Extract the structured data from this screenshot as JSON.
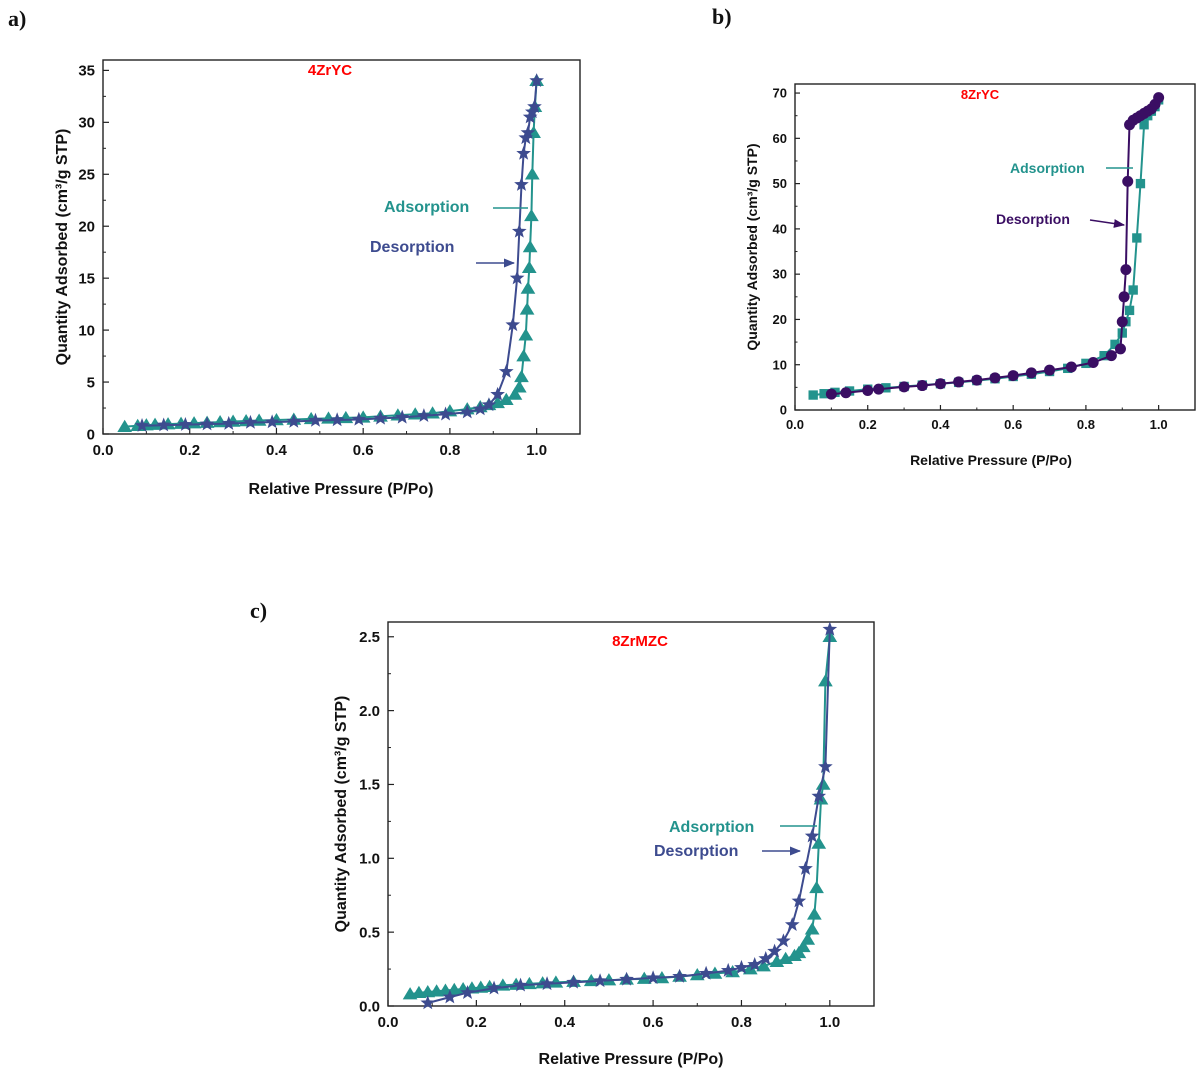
{
  "panels": {
    "a": "a)",
    "b": "b)",
    "c": "c)"
  },
  "colors": {
    "adsorption": "#23938d",
    "desorption_star": "#3d4b8f",
    "desorption_circle": "#3a0e63",
    "title": "#ff0000",
    "axis": "#222222"
  },
  "chart_data": [
    {
      "type": "line",
      "title": "4ZrYC",
      "xlabel": "Relative Pressure (P/Po)",
      "ylabel": "Quantity Adsorbed (cm³/g STP)",
      "xlim": [
        0.0,
        1.1
      ],
      "ylim": [
        0,
        36
      ],
      "xticks": [
        "0.0",
        "0.2",
        "0.4",
        "0.6",
        "0.8",
        "1.0"
      ],
      "xtick_values": [
        0,
        0.2,
        0.4,
        0.6,
        0.8,
        1.0
      ],
      "yticks": [
        "0",
        "5",
        "10",
        "15",
        "20",
        "25",
        "30",
        "35"
      ],
      "ytick_values": [
        0,
        5,
        10,
        15,
        20,
        25,
        30,
        35
      ],
      "annotations": [
        "Adsorption",
        "Desorption"
      ],
      "series": [
        {
          "name": "Adsorption",
          "marker": "triangle",
          "x": [
            0.05,
            0.08,
            0.1,
            0.12,
            0.15,
            0.18,
            0.21,
            0.24,
            0.27,
            0.3,
            0.33,
            0.36,
            0.4,
            0.44,
            0.48,
            0.52,
            0.56,
            0.6,
            0.64,
            0.68,
            0.72,
            0.76,
            0.8,
            0.84,
            0.87,
            0.89,
            0.91,
            0.93,
            0.95,
            0.96,
            0.965,
            0.97,
            0.975,
            0.978,
            0.98,
            0.983,
            0.985,
            0.988,
            0.99,
            0.993,
            0.996,
            1.0
          ],
          "y": [
            0.7,
            0.8,
            0.85,
            0.9,
            0.95,
            1.0,
            1.05,
            1.1,
            1.15,
            1.2,
            1.25,
            1.3,
            1.35,
            1.4,
            1.45,
            1.5,
            1.55,
            1.6,
            1.7,
            1.8,
            1.9,
            2.0,
            2.2,
            2.4,
            2.6,
            2.8,
            3.0,
            3.3,
            3.8,
            4.5,
            5.5,
            7.5,
            9.5,
            12.0,
            14.0,
            16.0,
            18.0,
            21.0,
            25.0,
            29.0,
            31.5,
            34.0
          ]
        },
        {
          "name": "Desorption",
          "marker": "star",
          "x": [
            1.0,
            0.995,
            0.99,
            0.985,
            0.98,
            0.975,
            0.97,
            0.965,
            0.96,
            0.955,
            0.945,
            0.93,
            0.91,
            0.89,
            0.87,
            0.84,
            0.79,
            0.74,
            0.69,
            0.64,
            0.59,
            0.54,
            0.49,
            0.44,
            0.39,
            0.34,
            0.29,
            0.24,
            0.19,
            0.14,
            0.09
          ],
          "y": [
            34.0,
            31.5,
            31.0,
            30.5,
            29.0,
            28.5,
            27.0,
            24.0,
            19.5,
            15.0,
            10.5,
            6.0,
            3.8,
            2.8,
            2.4,
            2.1,
            1.9,
            1.75,
            1.6,
            1.5,
            1.4,
            1.35,
            1.3,
            1.2,
            1.15,
            1.1,
            1.0,
            0.95,
            0.9,
            0.85,
            0.8
          ]
        }
      ]
    },
    {
      "type": "line",
      "title": "8ZrYC",
      "xlabel": "Relative Pressure (P/Po)",
      "ylabel": "Quantity Adsorbed (cm³/g STP)",
      "xlim": [
        0.0,
        1.1
      ],
      "ylim": [
        0,
        72
      ],
      "xticks": [
        "0.0",
        "0.2",
        "0.4",
        "0.6",
        "0.8",
        "1.0"
      ],
      "xtick_values": [
        0,
        0.2,
        0.4,
        0.6,
        0.8,
        1.0
      ],
      "yticks": [
        "0",
        "10",
        "20",
        "30",
        "40",
        "50",
        "60",
        "70"
      ],
      "ytick_values": [
        0,
        10,
        20,
        30,
        40,
        50,
        60,
        70
      ],
      "annotations": [
        "Adsorption",
        "Desorption"
      ],
      "series": [
        {
          "name": "Adsorption",
          "marker": "square",
          "x": [
            0.05,
            0.08,
            0.11,
            0.15,
            0.2,
            0.25,
            0.3,
            0.35,
            0.4,
            0.45,
            0.5,
            0.55,
            0.6,
            0.65,
            0.7,
            0.75,
            0.8,
            0.85,
            0.88,
            0.9,
            0.91,
            0.92,
            0.93,
            0.94,
            0.95,
            0.96,
            0.97,
            0.98,
            0.99,
            1.0
          ],
          "y": [
            3.3,
            3.6,
            3.9,
            4.2,
            4.6,
            4.9,
            5.2,
            5.5,
            5.8,
            6.1,
            6.5,
            6.9,
            7.4,
            7.9,
            8.5,
            9.2,
            10.3,
            12.0,
            14.5,
            17.0,
            19.5,
            22.0,
            26.5,
            38.0,
            50.0,
            63.0,
            65.0,
            66.0,
            67.0,
            68.5
          ]
        },
        {
          "name": "Desorption",
          "marker": "circle",
          "x": [
            1.0,
            0.99,
            0.98,
            0.97,
            0.96,
            0.95,
            0.94,
            0.93,
            0.92,
            0.915,
            0.91,
            0.905,
            0.9,
            0.895,
            0.87,
            0.82,
            0.76,
            0.7,
            0.65,
            0.6,
            0.55,
            0.5,
            0.45,
            0.4,
            0.35,
            0.3,
            0.23,
            0.2,
            0.14,
            0.1
          ],
          "y": [
            69.0,
            67.5,
            66.5,
            66.0,
            65.5,
            65.0,
            64.5,
            64.0,
            63.0,
            50.5,
            31.0,
            25.0,
            19.5,
            13.5,
            12.0,
            10.5,
            9.5,
            8.8,
            8.2,
            7.6,
            7.1,
            6.6,
            6.2,
            5.8,
            5.4,
            5.1,
            4.6,
            4.3,
            3.8,
            3.5
          ]
        }
      ]
    },
    {
      "type": "line",
      "title": "8ZrMZC",
      "xlabel": "Relative Pressure (P/Po)",
      "ylabel": "Quantity Adsorbed (cm³/g STP)",
      "xlim": [
        0.0,
        1.1
      ],
      "ylim": [
        0,
        2.6
      ],
      "xticks": [
        "0.0",
        "0.2",
        "0.4",
        "0.6",
        "0.8",
        "1.0"
      ],
      "xtick_values": [
        0,
        0.2,
        0.4,
        0.6,
        0.8,
        1.0
      ],
      "yticks": [
        "0.0",
        "0.5",
        "1.0",
        "1.5",
        "2.0",
        "2.5"
      ],
      "ytick_values": [
        0,
        0.5,
        1.0,
        1.5,
        2.0,
        2.5
      ],
      "annotations": [
        "Adsorption",
        "Desorption"
      ],
      "series": [
        {
          "name": "Adsorption",
          "marker": "triangle",
          "x": [
            0.05,
            0.07,
            0.09,
            0.11,
            0.13,
            0.15,
            0.17,
            0.19,
            0.21,
            0.23,
            0.26,
            0.29,
            0.32,
            0.35,
            0.38,
            0.42,
            0.46,
            0.5,
            0.54,
            0.58,
            0.62,
            0.66,
            0.7,
            0.74,
            0.78,
            0.82,
            0.85,
            0.88,
            0.9,
            0.92,
            0.93,
            0.94,
            0.95,
            0.96,
            0.965,
            0.97,
            0.975,
            0.98,
            0.985,
            0.99,
            1.0
          ],
          "y": [
            0.08,
            0.09,
            0.095,
            0.1,
            0.105,
            0.11,
            0.115,
            0.12,
            0.125,
            0.13,
            0.14,
            0.145,
            0.15,
            0.155,
            0.16,
            0.165,
            0.17,
            0.175,
            0.18,
            0.185,
            0.19,
            0.2,
            0.21,
            0.22,
            0.23,
            0.25,
            0.27,
            0.3,
            0.32,
            0.34,
            0.36,
            0.4,
            0.45,
            0.52,
            0.62,
            0.8,
            1.1,
            1.4,
            1.5,
            2.2,
            2.5
          ]
        },
        {
          "name": "Desorption",
          "marker": "star",
          "x": [
            1.0,
            0.99,
            0.975,
            0.96,
            0.945,
            0.93,
            0.915,
            0.895,
            0.875,
            0.855,
            0.83,
            0.8,
            0.77,
            0.72,
            0.66,
            0.6,
            0.54,
            0.48,
            0.42,
            0.36,
            0.3,
            0.24,
            0.18,
            0.14,
            0.09
          ],
          "y": [
            2.55,
            1.62,
            1.42,
            1.15,
            0.93,
            0.71,
            0.55,
            0.44,
            0.37,
            0.32,
            0.28,
            0.26,
            0.24,
            0.22,
            0.2,
            0.19,
            0.18,
            0.17,
            0.16,
            0.15,
            0.14,
            0.12,
            0.09,
            0.06,
            0.02
          ]
        }
      ]
    }
  ]
}
